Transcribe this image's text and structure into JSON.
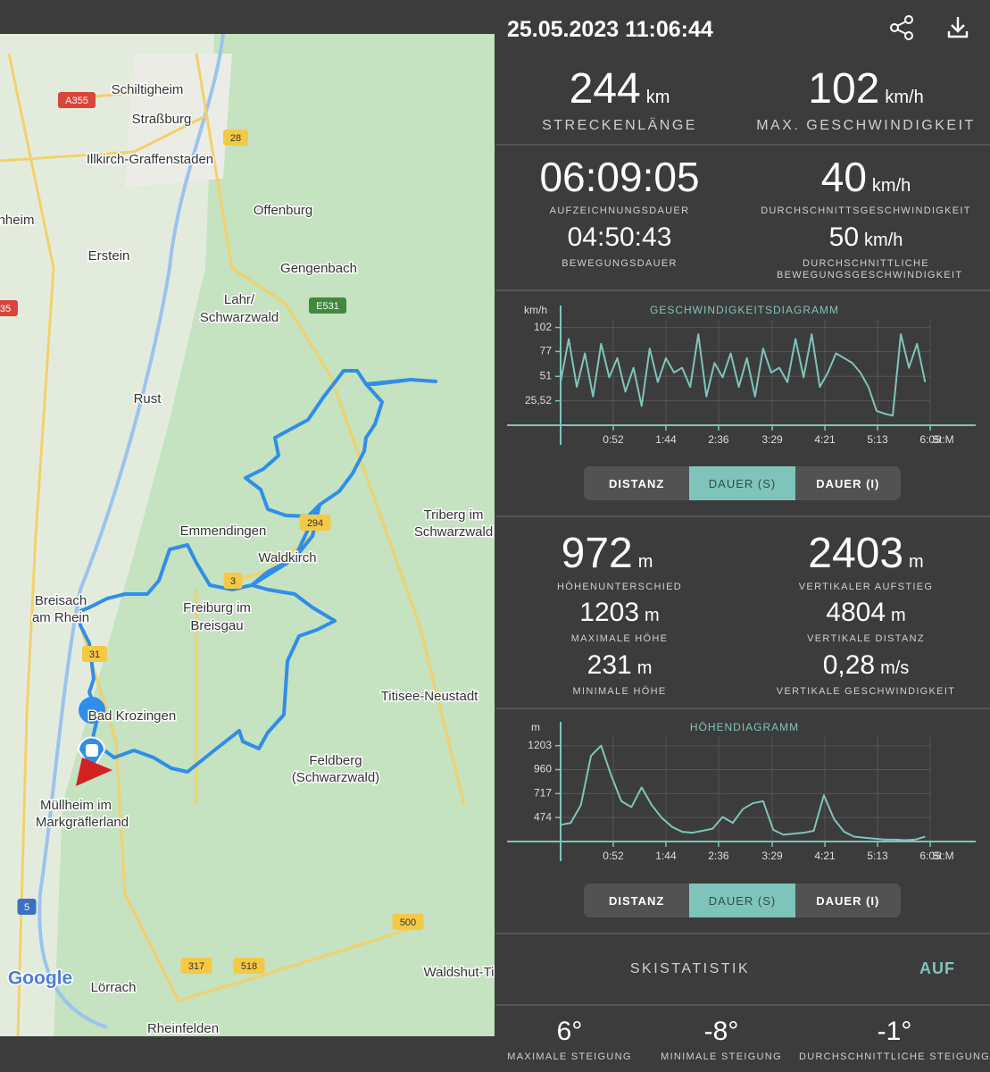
{
  "header": {
    "datetime": "25.05.2023 11:06:44"
  },
  "map": {
    "labels": [
      "Schiltigheim",
      "Straßburg",
      "Illkirch-Graffenstaden",
      "nheim",
      "Erstein",
      "Offenburg",
      "Gengenbach",
      "Lahr/",
      "Schwarzwald",
      "Rust",
      "Emmendingen",
      "Waldkirch",
      "Triberg im",
      "Schwarzwald",
      "Breisach",
      "am Rhein",
      "Freiburg im",
      "Breisgau",
      "Bad Krozingen",
      "Titisee-Neustadt",
      "Feldberg",
      "(Schwarzwald)",
      "Müllheim im",
      "Markgräflerland",
      "Lörrach",
      "Waldshut-Ti",
      "Rheinfelden",
      "Google"
    ],
    "road_numbers": [
      "A355",
      "28",
      "E531",
      "294",
      "3",
      "31",
      "35",
      "5",
      "500",
      "317",
      "518"
    ]
  },
  "stats": {
    "distance": {
      "value": "244",
      "unit": "km",
      "label": "STRECKENLÄNGE"
    },
    "max_speed": {
      "value": "102",
      "unit": "km/h",
      "label": "MAX. GESCHWINDIGKEIT"
    },
    "recording_time": {
      "value": "06:09:05",
      "label": "AUFZEICHNUNGSDAUER"
    },
    "avg_speed": {
      "value": "40",
      "unit": "km/h",
      "label": "DURCHSCHNITTSGESCHWINDIGKEIT"
    },
    "moving_time": {
      "value": "04:50:43",
      "label": "BEWEGUNGSDAUER"
    },
    "avg_moving_speed": {
      "value": "50",
      "unit": "km/h",
      "label": "DURCHSCHNITTLICHE BEWEGUNGSGESCHWINDIGKEIT"
    },
    "height_diff": {
      "value": "972",
      "unit": "m",
      "label": "HÖHENUNTERSCHIED"
    },
    "vertical_ascent": {
      "value": "2403",
      "unit": "m",
      "label": "VERTIKALER AUFSTIEG"
    },
    "max_height": {
      "value": "1203",
      "unit": "m",
      "label": "MAXIMALE HÖHE"
    },
    "vertical_distance": {
      "value": "4804",
      "unit": "m",
      "label": "VERTIKALE DISTANZ"
    },
    "min_height": {
      "value": "231",
      "unit": "m",
      "label": "MINIMALE HÖHE"
    },
    "vertical_speed": {
      "value": "0,28",
      "unit": "m/s",
      "label": "VERTIKALE GESCHWINDIGKEIT"
    }
  },
  "speed_chart": {
    "type": "line",
    "title": "GESCHWINDIGKEITSDIAGRAMM",
    "y_unit": "km/h",
    "x_unit": "St:M",
    "color": "#7fc4bb",
    "grid": true,
    "xlim": [
      0,
      365
    ],
    "ylim": [
      0,
      110
    ],
    "xticks": [
      {
        "value": 52,
        "label": "0:52"
      },
      {
        "value": 104,
        "label": "1:44"
      },
      {
        "value": 156,
        "label": "2:36"
      },
      {
        "value": 209,
        "label": "3:29"
      },
      {
        "value": 261,
        "label": "4:21"
      },
      {
        "value": 313,
        "label": "5:13"
      },
      {
        "value": 365,
        "label": "6:05"
      }
    ],
    "yticks": [
      {
        "value": 25.52,
        "label": "25,52"
      },
      51,
      77,
      102
    ],
    "x": [
      0,
      8,
      16,
      24,
      32,
      40,
      48,
      56,
      64,
      72,
      80,
      88,
      96,
      104,
      112,
      120,
      128,
      136,
      144,
      152,
      160,
      168,
      176,
      184,
      192,
      200,
      208,
      216,
      224,
      232,
      240,
      248,
      256,
      264,
      272,
      280,
      288,
      296,
      304,
      312,
      320,
      328,
      336,
      344,
      352,
      360
    ],
    "values": [
      45,
      90,
      40,
      75,
      30,
      85,
      50,
      70,
      35,
      60,
      20,
      80,
      45,
      70,
      55,
      60,
      40,
      95,
      30,
      65,
      50,
      75,
      40,
      70,
      30,
      80,
      55,
      60,
      45,
      90,
      50,
      95,
      40,
      55,
      75,
      70,
      65,
      55,
      40,
      15,
      12,
      10,
      95,
      60,
      85,
      45
    ]
  },
  "speed_tabs": [
    "DISTANZ",
    "DAUER (S)",
    "DAUER (I)"
  ],
  "elevation_chart": {
    "type": "line",
    "title": "HÖHENDIAGRAMM",
    "y_unit": "m",
    "x_unit": "St:M",
    "color": "#7fc4bb",
    "grid": true,
    "xlim": [
      0,
      365
    ],
    "ylim": [
      231,
      1300
    ],
    "xticks": [
      {
        "value": 52,
        "label": "0:52"
      },
      {
        "value": 104,
        "label": "1:44"
      },
      {
        "value": 156,
        "label": "2:36"
      },
      {
        "value": 209,
        "label": "3:29"
      },
      {
        "value": 261,
        "label": "4:21"
      },
      {
        "value": 313,
        "label": "5:13"
      },
      {
        "value": 365,
        "label": "6:05"
      }
    ],
    "yticks": [
      474,
      717,
      960,
      1203
    ],
    "x": [
      0,
      10,
      20,
      30,
      40,
      50,
      60,
      70,
      80,
      90,
      100,
      110,
      120,
      130,
      140,
      150,
      160,
      170,
      180,
      190,
      200,
      210,
      220,
      230,
      240,
      250,
      260,
      270,
      280,
      290,
      300,
      310,
      320,
      330,
      340,
      350,
      360
    ],
    "values": [
      400,
      420,
      600,
      1100,
      1203,
      900,
      640,
      580,
      780,
      600,
      470,
      380,
      330,
      320,
      340,
      360,
      480,
      420,
      560,
      620,
      640,
      350,
      300,
      310,
      320,
      340,
      700,
      460,
      330,
      280,
      270,
      260,
      250,
      250,
      245,
      250,
      280
    ]
  },
  "elevation_tabs": [
    "DISTANZ",
    "DAUER (S)",
    "DAUER (I)"
  ],
  "ski": {
    "title": "SKISTATISTIK",
    "toggle": "AUF",
    "stats": [
      {
        "value": "6°",
        "label": "MAXIMALE STEIGUNG"
      },
      {
        "value": "-8°",
        "label": "MINIMALE STEIGUNG"
      },
      {
        "value": "-1°",
        "label": "DURCHSCHNITTLICHE STEIGUNG"
      }
    ]
  }
}
